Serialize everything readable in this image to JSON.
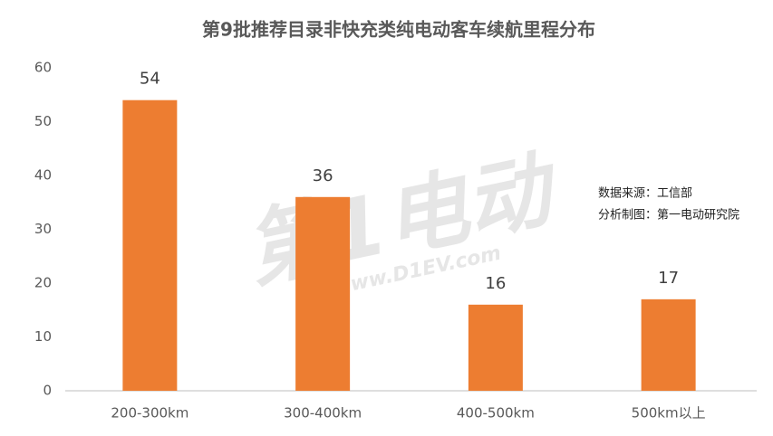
{
  "chart_data": {
    "type": "bar",
    "title": "第9批推荐目录非快充类纯电动客车续航里程分布",
    "categories": [
      "200-300km",
      "300-400km",
      "400-500km",
      "500km以上"
    ],
    "values": [
      54,
      36,
      16,
      17
    ],
    "color": "#ed7d31",
    "ylim": [
      0,
      60
    ],
    "yticks": [
      0,
      10,
      20,
      30,
      40,
      50,
      60
    ],
    "grid": false,
    "annotations": [
      "数据来源：工信部",
      "分析制图：第一电动研究院"
    ],
    "watermark": [
      "第1电动",
      "www.D1EV.com"
    ]
  }
}
